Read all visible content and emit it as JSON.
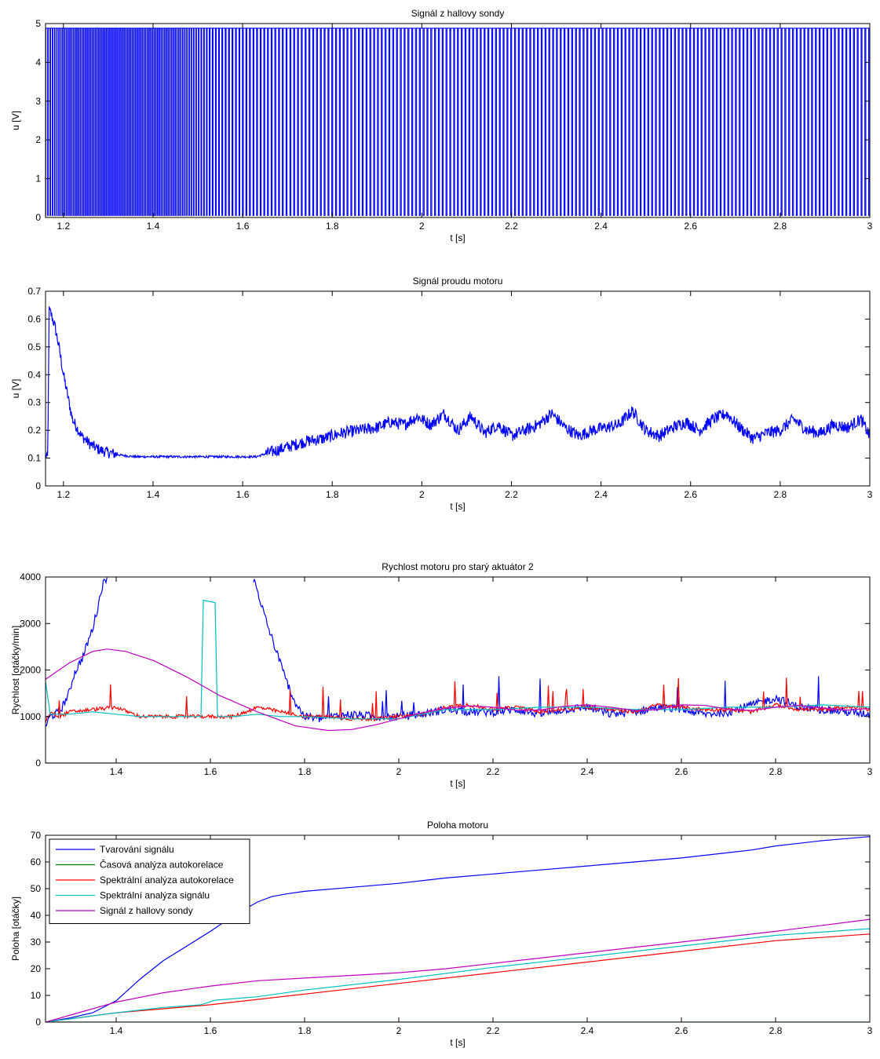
{
  "chart_data": [
    {
      "type": "line",
      "title": "Signál z hallovy sondy",
      "xlabel": "t [s]",
      "ylabel": "u [V]",
      "xlim": [
        1.16,
        3.0
      ],
      "ylim": [
        0,
        5
      ],
      "xticks": [
        1.2,
        1.4,
        1.6,
        1.8,
        2.0,
        2.2,
        2.4,
        2.6,
        2.8,
        3.0
      ],
      "xtick_labels": [
        "1.2",
        "1.4",
        "1.6",
        "1.8",
        "2",
        "2.2",
        "2.4",
        "2.6",
        "2.8",
        "3"
      ],
      "yticks": [
        0,
        1,
        2,
        3,
        4,
        5
      ],
      "ytick_labels": [
        "0",
        "1",
        "2",
        "3",
        "4",
        "5"
      ],
      "series": [
        {
          "color": "#0000ff",
          "kind": "square_wave",
          "low": 0.05,
          "high": 4.88,
          "period_by_t": [
            [
              1.16,
              0.0055
            ],
            [
              1.2,
              0.004
            ],
            [
              1.3,
              0.0035
            ],
            [
              1.45,
              0.004
            ],
            [
              1.55,
              0.0075
            ],
            [
              1.7,
              0.0085
            ],
            [
              1.8,
              0.0085
            ],
            [
              2.0,
              0.0085
            ],
            [
              3.0,
              0.0085
            ]
          ]
        }
      ]
    },
    {
      "type": "line",
      "title": "Signál proudu motoru",
      "xlabel": "t [s]",
      "ylabel": "u [V]",
      "xlim": [
        1.16,
        3.0
      ],
      "ylim": [
        0,
        0.7
      ],
      "xticks": [
        1.2,
        1.4,
        1.6,
        1.8,
        2.0,
        2.2,
        2.4,
        2.6,
        2.8,
        3.0
      ],
      "xtick_labels": [
        "1.2",
        "1.4",
        "1.6",
        "1.8",
        "2",
        "2.2",
        "2.4",
        "2.6",
        "2.8",
        "3"
      ],
      "yticks": [
        0,
        0.1,
        0.2,
        0.3,
        0.4,
        0.5,
        0.6,
        0.7
      ],
      "ytick_labels": [
        "0",
        "0.1",
        "0.2",
        "0.3",
        "0.4",
        "0.5",
        "0.6",
        "0.7"
      ],
      "series": [
        {
          "color": "#0000ff",
          "x": [
            1.16,
            1.165,
            1.168,
            1.172,
            1.18,
            1.19,
            1.2,
            1.21,
            1.22,
            1.24,
            1.26,
            1.28,
            1.3,
            1.33,
            1.36,
            1.4,
            1.45,
            1.5,
            1.55,
            1.6,
            1.63,
            1.66,
            1.7,
            1.74,
            1.78,
            1.82,
            1.86,
            1.9,
            1.93,
            1.96,
            1.99,
            2.02,
            2.05,
            2.08,
            2.11,
            2.14,
            2.17,
            2.2,
            2.23,
            2.26,
            2.29,
            2.32,
            2.35,
            2.38,
            2.41,
            2.44,
            2.47,
            2.5,
            2.53,
            2.56,
            2.59,
            2.62,
            2.65,
            2.68,
            2.71,
            2.74,
            2.77,
            2.8,
            2.83,
            2.86,
            2.89,
            2.92,
            2.95,
            2.98,
            3.0
          ],
          "y": [
            0.11,
            0.1,
            0.63,
            0.62,
            0.58,
            0.5,
            0.4,
            0.32,
            0.24,
            0.18,
            0.15,
            0.13,
            0.12,
            0.11,
            0.105,
            0.105,
            0.105,
            0.105,
            0.105,
            0.105,
            0.105,
            0.12,
            0.14,
            0.16,
            0.17,
            0.19,
            0.2,
            0.21,
            0.23,
            0.22,
            0.25,
            0.22,
            0.26,
            0.2,
            0.25,
            0.19,
            0.22,
            0.18,
            0.2,
            0.22,
            0.26,
            0.21,
            0.18,
            0.2,
            0.21,
            0.22,
            0.27,
            0.2,
            0.18,
            0.21,
            0.23,
            0.2,
            0.24,
            0.26,
            0.21,
            0.17,
            0.19,
            0.2,
            0.24,
            0.2,
            0.19,
            0.22,
            0.21,
            0.24,
            0.18
          ]
        }
      ]
    },
    {
      "type": "line",
      "title": "Rychlost motoru pro starý aktuátor 2",
      "xlabel": "t [s]",
      "ylabel": "Rychlost [otáčky/min]",
      "xlim": [
        1.25,
        3.0
      ],
      "ylim": [
        0,
        4000
      ],
      "xticks": [
        1.4,
        1.6,
        1.8,
        2.0,
        2.2,
        2.4,
        2.6,
        2.8,
        3.0
      ],
      "xtick_labels": [
        "1.4",
        "1.6",
        "1.8",
        "2",
        "2.2",
        "2.4",
        "2.6",
        "2.8",
        "3"
      ],
      "yticks": [
        0,
        1000,
        2000,
        3000,
        4000
      ],
      "ytick_labels": [
        "0",
        "1000",
        "2000",
        "3000",
        "4000"
      ],
      "series": [
        {
          "color": "#0000ff",
          "x": [
            1.25,
            1.26,
            1.28,
            1.3,
            1.31,
            1.33,
            1.35,
            1.36,
            1.37,
            1.38,
            1.69,
            1.7,
            1.72,
            1.74,
            1.76,
            1.78,
            1.8,
            1.83,
            1.86,
            1.9,
            1.95,
            2.0,
            2.05,
            2.1,
            2.15,
            2.2,
            2.25,
            2.3,
            2.35,
            2.4,
            2.45,
            2.5,
            2.55,
            2.6,
            2.65,
            2.7,
            2.75,
            2.8,
            2.85,
            2.9,
            2.95,
            3.0
          ],
          "y": [
            800,
            1000,
            1100,
            1500,
            1900,
            2300,
            2900,
            3300,
            3800,
            4000,
            4000,
            3700,
            3000,
            2400,
            1800,
            1300,
            1000,
            950,
            1000,
            1050,
            1000,
            1000,
            1050,
            1150,
            1100,
            1100,
            1150,
            1050,
            1150,
            1200,
            1050,
            1100,
            1200,
            1150,
            1050,
            1100,
            1250,
            1400,
            1200,
            1150,
            1100,
            1050
          ]
        },
        {
          "color": "#008000",
          "x": [
            1.25,
            3.0
          ],
          "y": [
            0,
            0
          ]
        },
        {
          "color": "#ff0000",
          "x": [
            1.25,
            1.26,
            1.28,
            1.3,
            1.35,
            1.4,
            1.45,
            1.5,
            1.55,
            1.6,
            1.65,
            1.7,
            1.75,
            1.8,
            1.85,
            1.9,
            1.95,
            2.0,
            2.05,
            2.1,
            2.15,
            2.2,
            2.25,
            2.3,
            2.35,
            2.4,
            2.45,
            2.5,
            2.55,
            2.6,
            2.65,
            2.7,
            2.75,
            2.8,
            2.85,
            2.9,
            2.95,
            3.0
          ],
          "y": [
            900,
            1100,
            1000,
            1100,
            1150,
            1200,
            1000,
            1000,
            1000,
            1000,
            1000,
            1200,
            1100,
            1000,
            1000,
            950,
            950,
            1000,
            1050,
            1200,
            1250,
            1150,
            1200,
            1100,
            1150,
            1200,
            1150,
            1100,
            1250,
            1200,
            1150,
            1150,
            1100,
            1250,
            1150,
            1150,
            1200,
            1150
          ]
        },
        {
          "color": "#00bfbf",
          "x": [
            1.25,
            1.26,
            1.3,
            1.35,
            1.4,
            1.45,
            1.5,
            1.55,
            1.58,
            1.585,
            1.61,
            1.615,
            1.65,
            1.7,
            1.75,
            1.8,
            1.9,
            2.0,
            2.05,
            2.1,
            2.2,
            2.3,
            2.4,
            2.5,
            2.6,
            2.7,
            2.8,
            2.9,
            3.0
          ],
          "y": [
            1750,
            1050,
            1050,
            1100,
            1050,
            1000,
            1000,
            1000,
            1000,
            3500,
            3450,
            1000,
            1000,
            1050,
            1000,
            1000,
            950,
            950,
            1050,
            1150,
            1150,
            1200,
            1200,
            1150,
            1150,
            1200,
            1200,
            1250,
            1200
          ]
        },
        {
          "color": "#bf00bf",
          "x": [
            1.25,
            1.3,
            1.35,
            1.38,
            1.42,
            1.48,
            1.55,
            1.62,
            1.7,
            1.78,
            1.85,
            1.9,
            1.95,
            2.0,
            2.05,
            2.1,
            2.15,
            2.2,
            2.25,
            2.3,
            2.35,
            2.4,
            2.45,
            2.5,
            2.55,
            2.6,
            2.65,
            2.7,
            2.75,
            2.8,
            2.85,
            2.9,
            2.95,
            3.0
          ],
          "y": [
            1800,
            2150,
            2400,
            2450,
            2400,
            2200,
            1850,
            1450,
            1100,
            800,
            700,
            720,
            820,
            950,
            1080,
            1180,
            1230,
            1200,
            1140,
            1140,
            1220,
            1250,
            1200,
            1130,
            1150,
            1250,
            1240,
            1160,
            1130,
            1200,
            1240,
            1180,
            1140,
            1170
          ]
        }
      ]
    },
    {
      "type": "line",
      "title": "Poloha motoru",
      "xlabel": "t [s]",
      "ylabel": "Poloha [otáčky]",
      "xlim": [
        1.25,
        3.0
      ],
      "ylim": [
        0,
        70
      ],
      "xticks": [
        1.4,
        1.6,
        1.8,
        2.0,
        2.2,
        2.4,
        2.6,
        2.8,
        3.0
      ],
      "xtick_labels": [
        "1.4",
        "1.6",
        "1.8",
        "2",
        "2.2",
        "2.4",
        "2.6",
        "2.8",
        "3"
      ],
      "yticks": [
        0,
        10,
        20,
        30,
        40,
        50,
        60,
        70
      ],
      "ytick_labels": [
        "0",
        "10",
        "20",
        "30",
        "40",
        "50",
        "60",
        "70"
      ],
      "legend_position": "top-left",
      "series": [
        {
          "name": "Tvarování signálu",
          "color": "#0000ff",
          "x": [
            1.25,
            1.3,
            1.35,
            1.4,
            1.45,
            1.5,
            1.55,
            1.6,
            1.65,
            1.7,
            1.73,
            1.76,
            1.8,
            1.9,
            2.0,
            2.1,
            2.2,
            2.3,
            2.4,
            2.5,
            2.6,
            2.7,
            2.75,
            2.8,
            2.9,
            3.0
          ],
          "y": [
            0,
            1.5,
            3.5,
            8,
            16,
            23,
            28.5,
            34,
            40,
            45,
            47,
            48,
            49,
            50.5,
            52,
            54,
            55.5,
            57,
            58.5,
            60,
            61.5,
            63.5,
            64.5,
            66,
            68,
            69.5
          ]
        },
        {
          "name": "Časová analýza autokorelace",
          "color": "#008000",
          "x": [
            1.25,
            3.0
          ],
          "y": [
            0,
            0
          ]
        },
        {
          "name": "Spektrální analýza autokorelace",
          "color": "#ff0000",
          "x": [
            1.25,
            1.4,
            1.6,
            1.8,
            2.0,
            2.2,
            2.4,
            2.6,
            2.8,
            3.0
          ],
          "y": [
            0,
            3.5,
            6.5,
            10.5,
            14.5,
            18.5,
            22.5,
            26.5,
            30.5,
            33
          ]
        },
        {
          "name": "Spektrální analýza signálu",
          "color": "#00bfbf",
          "x": [
            1.25,
            1.4,
            1.5,
            1.58,
            1.61,
            1.7,
            1.8,
            2.0,
            2.2,
            2.4,
            2.6,
            2.8,
            3.0
          ],
          "y": [
            0,
            3.5,
            5.5,
            6.5,
            8.2,
            9.5,
            12,
            16,
            20.5,
            24.5,
            28.5,
            32.5,
            35
          ]
        },
        {
          "name": "Signál z hallovy sondy",
          "color": "#bf00bf",
          "x": [
            1.25,
            1.3,
            1.35,
            1.4,
            1.5,
            1.6,
            1.7,
            1.8,
            1.9,
            2.0,
            2.1,
            2.2,
            2.4,
            2.6,
            2.8,
            3.0
          ],
          "y": [
            0,
            2.5,
            5,
            7.5,
            11,
            13.5,
            15.5,
            16.5,
            17.5,
            18.5,
            20,
            22,
            26,
            30,
            34,
            38.5
          ]
        }
      ]
    }
  ]
}
